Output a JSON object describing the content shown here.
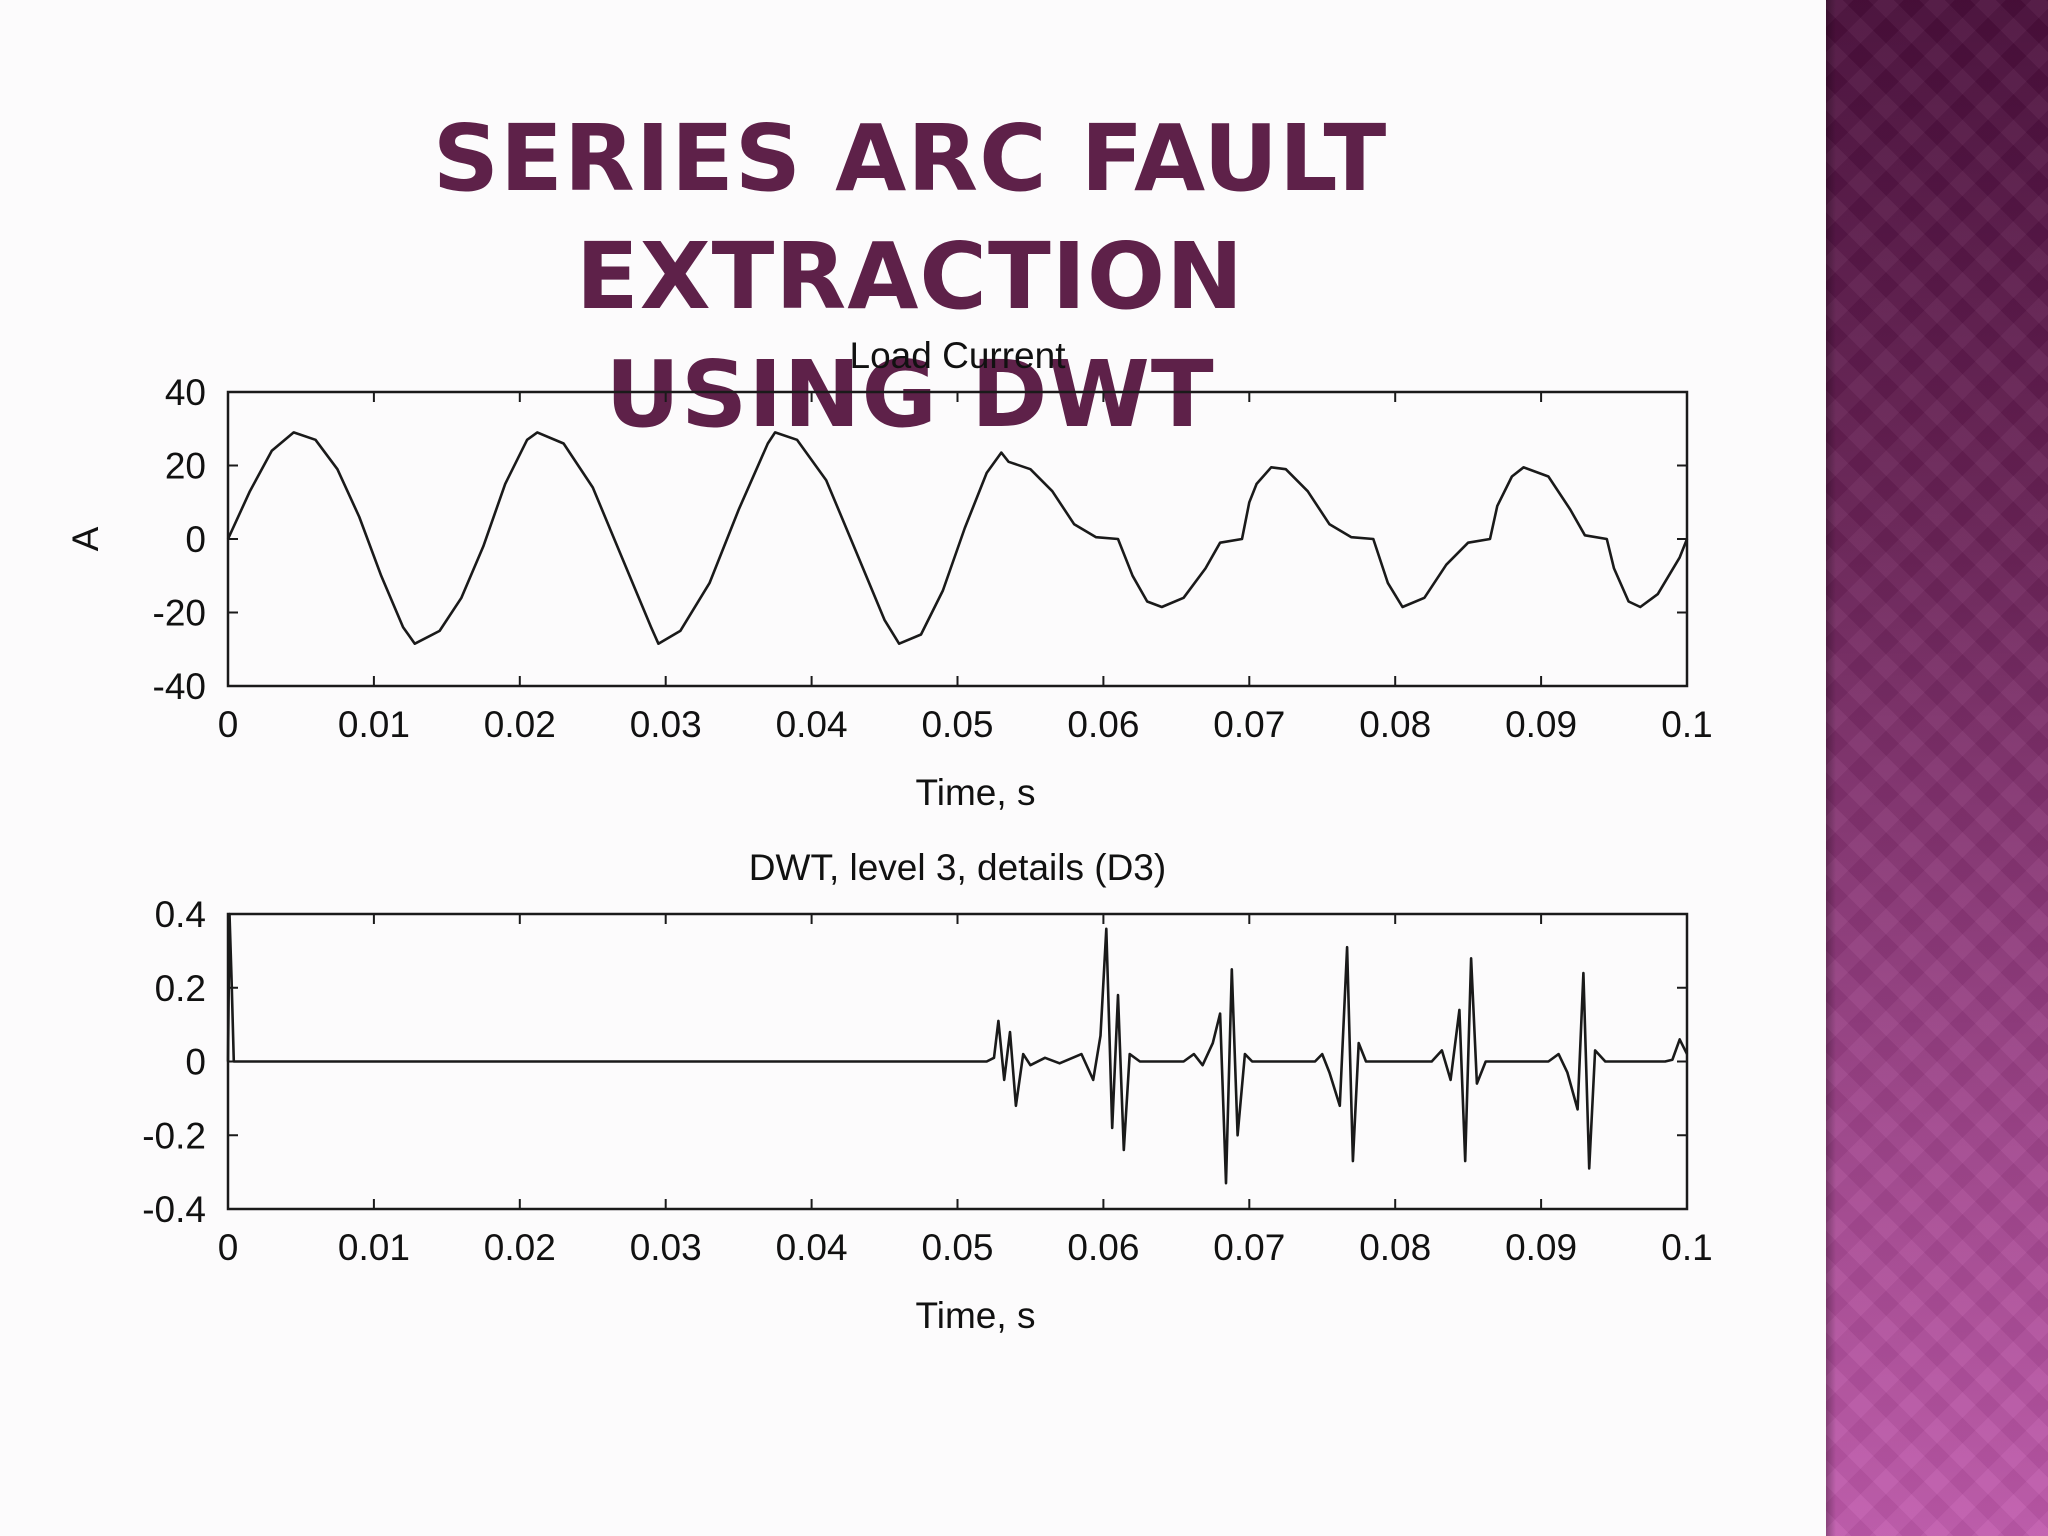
{
  "slide": {
    "title_line1": "SERIES ARC FAULT EXTRACTION",
    "title_line2": "USING DWT",
    "accent_color": "#5e2149",
    "side_band_colors": [
      "#4a0f3b",
      "#c05aac"
    ]
  },
  "chart_data": [
    {
      "type": "line",
      "title": "Load Current",
      "xlabel": "Time, s",
      "ylabel": "A",
      "xlim": [
        0,
        0.1
      ],
      "ylim": [
        -40,
        40
      ],
      "xticks": [
        0,
        0.01,
        0.02,
        0.03,
        0.04,
        0.05,
        0.06,
        0.07,
        0.08,
        0.09,
        0.1
      ],
      "xtick_labels": [
        "0",
        "0.01",
        "0.02",
        "0.03",
        "0.04",
        "0.05",
        "0.06",
        "0.07",
        "0.08",
        "0.09",
        "0.1"
      ],
      "yticks": [
        40,
        20,
        0,
        -20,
        -40
      ],
      "ytick_labels": [
        "40",
        "20",
        "0",
        "-20",
        "-40"
      ],
      "grid": false,
      "series": [
        {
          "values": [
            [
              0,
              0
            ],
            [
              0.0015,
              13
            ],
            [
              0.003,
              24
            ],
            [
              0.0045,
              29
            ],
            [
              0.006,
              27
            ],
            [
              0.0075,
              19
            ],
            [
              0.009,
              6
            ],
            [
              0.0105,
              -10
            ],
            [
              0.012,
              -24
            ],
            [
              0.0128,
              -28.5
            ],
            [
              0.0145,
              -25
            ],
            [
              0.016,
              -16
            ],
            [
              0.0175,
              -2
            ],
            [
              0.019,
              15
            ],
            [
              0.0205,
              27
            ],
            [
              0.0212,
              29
            ],
            [
              0.023,
              26
            ],
            [
              0.025,
              14
            ],
            [
              0.027,
              -5
            ],
            [
              0.029,
              -24
            ],
            [
              0.0295,
              -28.5
            ],
            [
              0.031,
              -25
            ],
            [
              0.033,
              -12
            ],
            [
              0.035,
              8
            ],
            [
              0.037,
              26
            ],
            [
              0.0375,
              29
            ],
            [
              0.039,
              27
            ],
            [
              0.041,
              16
            ],
            [
              0.043,
              -3
            ],
            [
              0.045,
              -22
            ],
            [
              0.046,
              -28.5
            ],
            [
              0.0475,
              -26
            ],
            [
              0.049,
              -14
            ],
            [
              0.0505,
              3
            ],
            [
              0.052,
              18
            ],
            [
              0.053,
              23.5
            ],
            [
              0.0535,
              21
            ],
            [
              0.055,
              19
            ],
            [
              0.0565,
              13
            ],
            [
              0.058,
              4
            ],
            [
              0.0595,
              0.5
            ],
            [
              0.061,
              0
            ],
            [
              0.062,
              -10
            ],
            [
              0.063,
              -17
            ],
            [
              0.064,
              -18.5
            ],
            [
              0.0655,
              -16
            ],
            [
              0.067,
              -8
            ],
            [
              0.068,
              -1
            ],
            [
              0.0695,
              0
            ],
            [
              0.07,
              10
            ],
            [
              0.0705,
              15
            ],
            [
              0.0715,
              19.5
            ],
            [
              0.0725,
              19
            ],
            [
              0.074,
              13
            ],
            [
              0.0755,
              4
            ],
            [
              0.077,
              0.5
            ],
            [
              0.0785,
              0
            ],
            [
              0.0795,
              -12
            ],
            [
              0.0805,
              -18.5
            ],
            [
              0.082,
              -16
            ],
            [
              0.0835,
              -7
            ],
            [
              0.085,
              -1
            ],
            [
              0.0865,
              0
            ],
            [
              0.087,
              9
            ],
            [
              0.088,
              17
            ],
            [
              0.0888,
              19.5
            ],
            [
              0.0905,
              17
            ],
            [
              0.092,
              8
            ],
            [
              0.093,
              1
            ],
            [
              0.0945,
              0
            ],
            [
              0.095,
              -8
            ],
            [
              0.096,
              -17
            ],
            [
              0.0968,
              -18.5
            ],
            [
              0.098,
              -15
            ],
            [
              0.0995,
              -5
            ],
            [
              0.1,
              0
            ]
          ]
        }
      ]
    },
    {
      "type": "line",
      "title": "DWT, level 3, details (D3)",
      "xlabel": "Time, s",
      "ylabel": "",
      "xlim": [
        0,
        0.1
      ],
      "ylim": [
        -0.4,
        0.4
      ],
      "xticks": [
        0,
        0.01,
        0.02,
        0.03,
        0.04,
        0.05,
        0.06,
        0.07,
        0.08,
        0.09,
        0.1
      ],
      "xtick_labels": [
        "0",
        "0.01",
        "0.02",
        "0.03",
        "0.04",
        "0.05",
        "0.06",
        "0.07",
        "0.08",
        "0.09",
        "0.1"
      ],
      "yticks": [
        0.4,
        0.2,
        0,
        -0.2,
        -0.4
      ],
      "ytick_labels": [
        "0.4",
        "0.2",
        "0",
        "-0.2",
        "-0.4"
      ],
      "grid": false,
      "series": [
        {
          "values": [
            [
              0,
              0
            ],
            [
              0.0001,
              0.4
            ],
            [
              0.00025,
              0.22
            ],
            [
              0.0004,
              0
            ],
            [
              0.052,
              0
            ],
            [
              0.0525,
              0.01
            ],
            [
              0.0528,
              0.11
            ],
            [
              0.0532,
              -0.05
            ],
            [
              0.0536,
              0.08
            ],
            [
              0.054,
              -0.12
            ],
            [
              0.0545,
              0.02
            ],
            [
              0.055,
              -0.01
            ],
            [
              0.056,
              0.01
            ],
            [
              0.057,
              -0.005
            ],
            [
              0.0585,
              0.02
            ],
            [
              0.0593,
              -0.05
            ],
            [
              0.0598,
              0.07
            ],
            [
              0.0602,
              0.36
            ],
            [
              0.0606,
              -0.18
            ],
            [
              0.061,
              0.18
            ],
            [
              0.0614,
              -0.24
            ],
            [
              0.0618,
              0.02
            ],
            [
              0.0625,
              0
            ],
            [
              0.0655,
              0
            ],
            [
              0.0662,
              0.02
            ],
            [
              0.0668,
              -0.01
            ],
            [
              0.0675,
              0.05
            ],
            [
              0.068,
              0.13
            ],
            [
              0.0684,
              -0.33
            ],
            [
              0.0688,
              0.25
            ],
            [
              0.0692,
              -0.2
            ],
            [
              0.0697,
              0.02
            ],
            [
              0.0702,
              0
            ],
            [
              0.0745,
              0
            ],
            [
              0.075,
              0.02
            ],
            [
              0.0755,
              -0.03
            ],
            [
              0.0762,
              -0.12
            ],
            [
              0.0767,
              0.31
            ],
            [
              0.0771,
              -0.27
            ],
            [
              0.0775,
              0.05
            ],
            [
              0.078,
              0
            ],
            [
              0.0825,
              0
            ],
            [
              0.0832,
              0.03
            ],
            [
              0.0838,
              -0.05
            ],
            [
              0.0844,
              0.14
            ],
            [
              0.0848,
              -0.27
            ],
            [
              0.0852,
              0.28
            ],
            [
              0.0856,
              -0.06
            ],
            [
              0.0862,
              0
            ],
            [
              0.0905,
              0
            ],
            [
              0.0912,
              0.02
            ],
            [
              0.0918,
              -0.03
            ],
            [
              0.0925,
              -0.13
            ],
            [
              0.0929,
              0.24
            ],
            [
              0.0933,
              -0.29
            ],
            [
              0.0937,
              0.03
            ],
            [
              0.0944,
              0
            ],
            [
              0.0985,
              0
            ],
            [
              0.099,
              0.005
            ],
            [
              0.0995,
              0.06
            ],
            [
              0.1,
              0.02
            ]
          ]
        }
      ]
    }
  ]
}
